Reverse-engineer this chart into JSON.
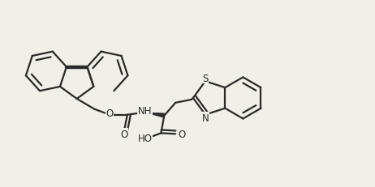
{
  "bg_color": "#f0f0e8",
  "line_color": "#2a2a2a",
  "lw": 1.6,
  "bold_lw": 3.2,
  "figsize": [
    4.62,
    2.32
  ],
  "dpi": 100,
  "labels": {
    "O1": "O",
    "NH": "NH",
    "N": "N",
    "S": "S",
    "COOH": "HO",
    "O2": "O",
    "O3": "O"
  }
}
